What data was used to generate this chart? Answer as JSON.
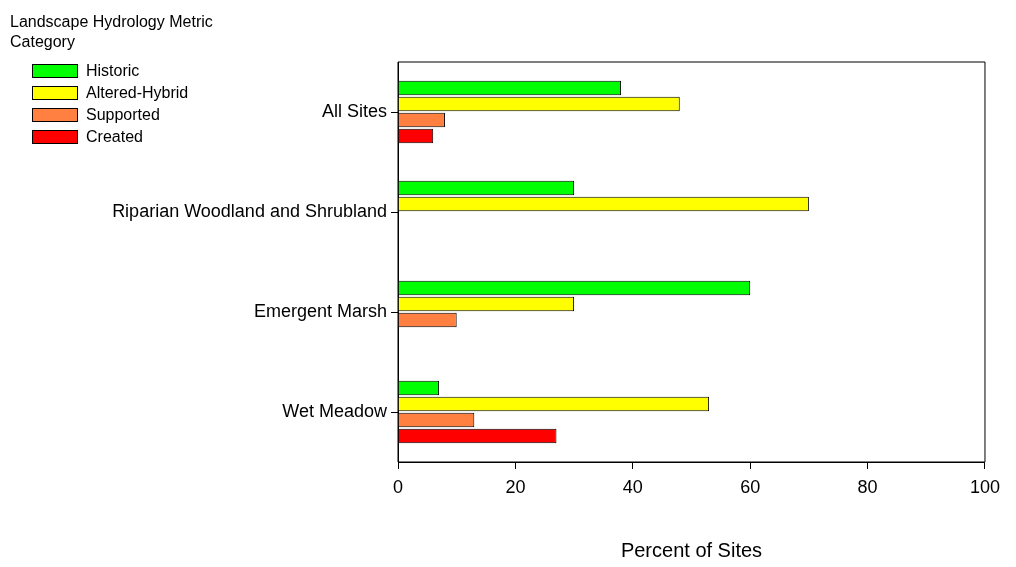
{
  "chart_data": {
    "type": "bar",
    "orientation": "horizontal",
    "xlabel": "Percent of Sites",
    "legend_title": "Landscape Hydrology Metric Category",
    "legend": "top left",
    "grid": false,
    "categories": [
      "All Sites",
      "Riparian Woodland and Shrubland",
      "Emergent Marsh",
      "Wet Meadow"
    ],
    "xlim": [
      0,
      100
    ],
    "xticks": [
      0,
      20,
      40,
      60,
      80,
      100
    ],
    "series": [
      {
        "name": "Historic",
        "color": "#00ff00",
        "values": [
          38,
          30,
          60,
          7
        ]
      },
      {
        "name": "Altered-Hybrid",
        "color": "#ffff00",
        "values": [
          48,
          70,
          30,
          53
        ]
      },
      {
        "name": "Supported",
        "color": "#ff8040",
        "values": [
          8,
          null,
          10,
          13
        ]
      },
      {
        "name": "Created",
        "color": "#ff0000",
        "values": [
          6,
          null,
          null,
          27
        ]
      }
    ]
  }
}
